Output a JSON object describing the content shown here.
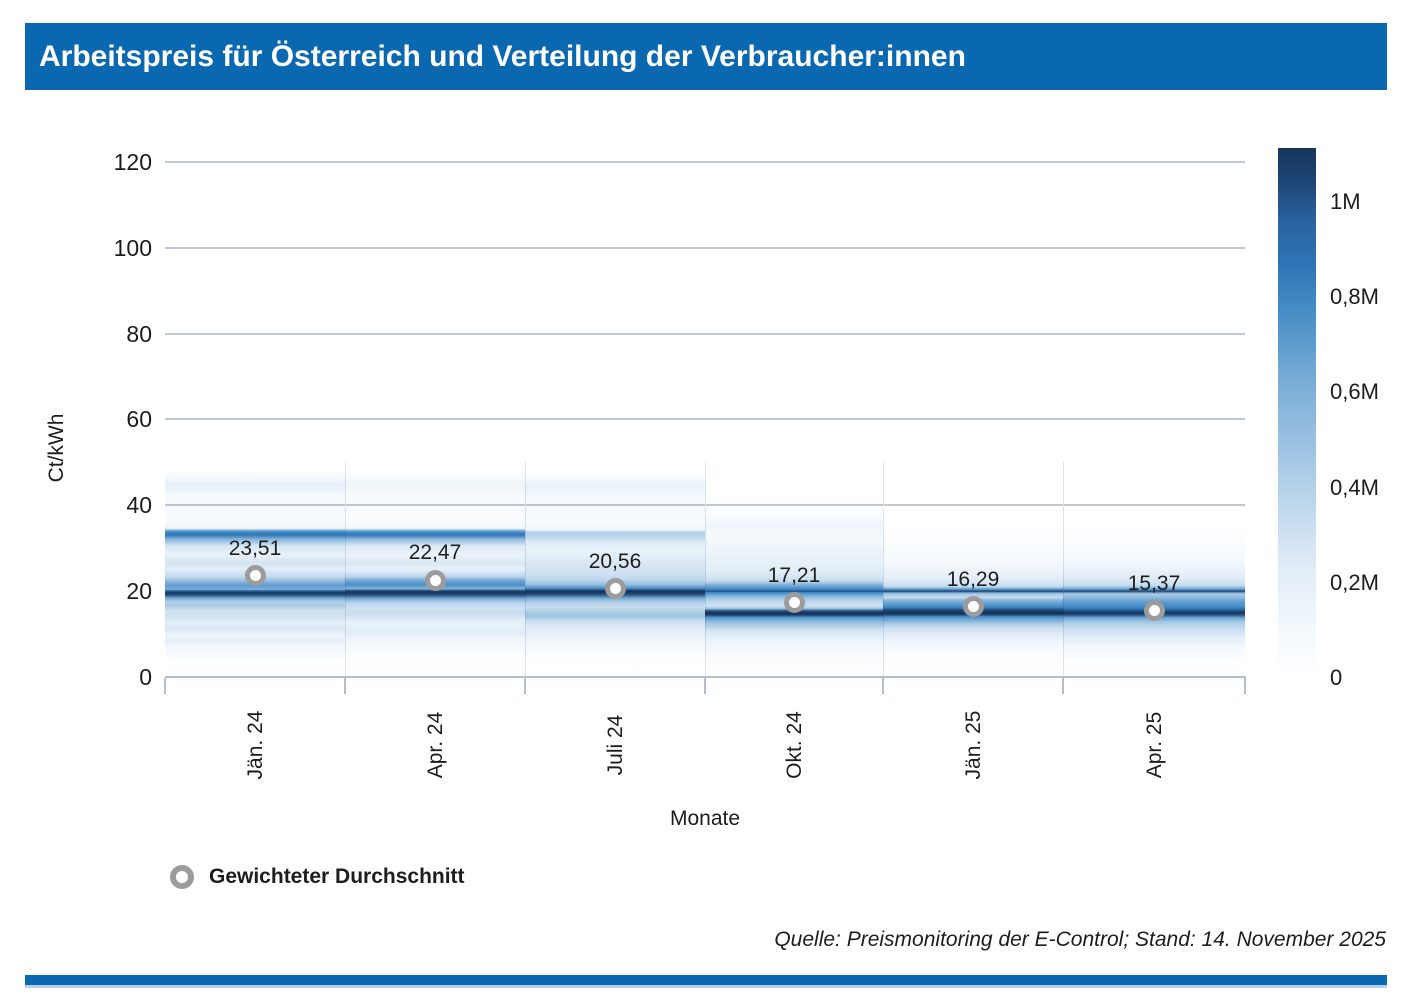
{
  "banner": {
    "title": "Arbeitspreis für Österreich und Verteilung der Verbraucher:innen"
  },
  "chart_data": {
    "type": "heatmap",
    "title": "Arbeitspreis für Österreich und Verteilung der Verbraucher:innen",
    "xlabel": "Monate",
    "ylabel": "Ct/kWh",
    "ylim": [
      0,
      120
    ],
    "yticks": [
      0,
      20,
      40,
      60,
      80,
      100,
      120
    ],
    "grid": true,
    "legend_position": "bottom-left",
    "categories": [
      "Jän. 24",
      "Apr. 24",
      "Juli 24",
      "Okt. 24",
      "Jän. 25",
      "Apr. 25"
    ],
    "series": [
      {
        "name": "Gewichteter Durchschnitt",
        "marker": "gray-ring-circle",
        "values": [
          23.51,
          22.47,
          20.56,
          17.21,
          16.29,
          15.37
        ],
        "labels": [
          "23,51",
          "22,47",
          "20,56",
          "17,21",
          "16,29",
          "15,37"
        ]
      }
    ],
    "colorbar": {
      "tick_labels": [
        "1M",
        "0,8M",
        "0,6M",
        "0,4M",
        "0,2M",
        "0"
      ],
      "orientation": "vertical",
      "gradient_stops": [
        [
          "0%",
          "#16355d"
        ],
        [
          "6%",
          "#1d4474"
        ],
        [
          "14%",
          "#2a63a0"
        ],
        [
          "22%",
          "#2e75b5"
        ],
        [
          "32%",
          "#4a90c7"
        ],
        [
          "44%",
          "#79add7"
        ],
        [
          "56%",
          "#9cc2e2"
        ],
        [
          "68%",
          "#c0d8ed"
        ],
        [
          "80%",
          "#e2edf7"
        ],
        [
          "90%",
          "#f2f8fc"
        ],
        [
          "100%",
          "#ffffff"
        ]
      ]
    },
    "density_columns": [
      {
        "month": "Jän. 24",
        "stops": [
          [
            48,
            "#ffffff"
          ],
          [
            46.3,
            "#f4f9fd"
          ],
          [
            45,
            "#e6eff8"
          ],
          [
            43.8,
            "#eaf2fa"
          ],
          [
            42,
            "#f6fafd"
          ],
          [
            36.5,
            "#f8fbfe"
          ],
          [
            34.6,
            "#edf4fa"
          ],
          [
            33.9,
            "#4a90c7"
          ],
          [
            33.1,
            "#2e75b5"
          ],
          [
            32,
            "#8ab7dc"
          ],
          [
            30.5,
            "#d6e5f3"
          ],
          [
            28.5,
            "#e9f2f9"
          ],
          [
            26.5,
            "#d4e4f2"
          ],
          [
            25,
            "#e2edf7"
          ],
          [
            23.3,
            "#c2d9ed"
          ],
          [
            22,
            "#82b1da"
          ],
          [
            21.2,
            "#5b9bd1"
          ],
          [
            20.4,
            "#7fb0d8"
          ],
          [
            19.9,
            "#2e75b5"
          ],
          [
            19.6,
            "#17365e"
          ],
          [
            19,
            "#2a5585"
          ],
          [
            18.4,
            "#6ea6d4"
          ],
          [
            17.5,
            "#b3d0e8"
          ],
          [
            16.5,
            "#a9cbe5"
          ],
          [
            15.4,
            "#d2e3f2"
          ],
          [
            14,
            "#cfe1f1"
          ],
          [
            12.8,
            "#e2edf7"
          ],
          [
            11,
            "#d9e8f4"
          ],
          [
            9.8,
            "#eef5fb"
          ],
          [
            8.2,
            "#e6f0f8"
          ],
          [
            6.8,
            "#f2f7fc"
          ],
          [
            4,
            "#fcfeff"
          ],
          [
            0,
            "#ffffff"
          ]
        ]
      },
      {
        "month": "Apr. 24",
        "stops": [
          [
            48,
            "#ffffff"
          ],
          [
            46.3,
            "#f8fbfe"
          ],
          [
            45,
            "#eef5fb"
          ],
          [
            43.8,
            "#f2f7fc"
          ],
          [
            42,
            "#f8fbfe"
          ],
          [
            36.5,
            "#fafcfe"
          ],
          [
            34.6,
            "#f0f6fb"
          ],
          [
            33.9,
            "#5597cd"
          ],
          [
            33.1,
            "#2e75b5"
          ],
          [
            32,
            "#93bcdf"
          ],
          [
            30.5,
            "#dce9f5"
          ],
          [
            28.5,
            "#ecf3fa"
          ],
          [
            26.5,
            "#d9e7f4"
          ],
          [
            25,
            "#e6f0f8"
          ],
          [
            23.4,
            "#bdd6ec"
          ],
          [
            22.3,
            "#6aa3d3"
          ],
          [
            21.4,
            "#4a90c7"
          ],
          [
            20.6,
            "#88b5dc"
          ],
          [
            19.9,
            "#1f4e79"
          ],
          [
            19.5,
            "#17365e"
          ],
          [
            18.9,
            "#35618f"
          ],
          [
            18.2,
            "#79add7"
          ],
          [
            17.2,
            "#bdd6ec"
          ],
          [
            16,
            "#cfe1f1"
          ],
          [
            14.7,
            "#c9ddee"
          ],
          [
            13.4,
            "#dfebf6"
          ],
          [
            12,
            "#e9f2f9"
          ],
          [
            10.4,
            "#dfebf6"
          ],
          [
            9,
            "#eef5fb"
          ],
          [
            7,
            "#f6fafd"
          ],
          [
            4,
            "#fcfeff"
          ],
          [
            0,
            "#ffffff"
          ]
        ]
      },
      {
        "month": "Juli 24",
        "stops": [
          [
            48,
            "#ffffff"
          ],
          [
            46,
            "#f6fafd"
          ],
          [
            44.6,
            "#e8f1f9"
          ],
          [
            43.4,
            "#eef5fb"
          ],
          [
            41.5,
            "#f6fafd"
          ],
          [
            36,
            "#f8fbfe"
          ],
          [
            34.3,
            "#f0f6fb"
          ],
          [
            33.6,
            "#aecde6"
          ],
          [
            32.6,
            "#bdd6ec"
          ],
          [
            31.2,
            "#e0ecf7"
          ],
          [
            29.5,
            "#e9f2f9"
          ],
          [
            27.5,
            "#dfebf6"
          ],
          [
            25.8,
            "#d6e5f3"
          ],
          [
            24.2,
            "#cfe1f1"
          ],
          [
            22.8,
            "#c2d9ed"
          ],
          [
            21.6,
            "#9cc2e2"
          ],
          [
            20.8,
            "#5b9bd1"
          ],
          [
            20.1,
            "#1f4e79"
          ],
          [
            19.6,
            "#17365e"
          ],
          [
            19,
            "#35618f"
          ],
          [
            18.3,
            "#79add7"
          ],
          [
            17.3,
            "#b3d0e8"
          ],
          [
            16.2,
            "#c9ddee"
          ],
          [
            15,
            "#aecde6"
          ],
          [
            14.1,
            "#9cc6e2"
          ],
          [
            13.2,
            "#c2d9ed"
          ],
          [
            12,
            "#d9e8f4"
          ],
          [
            10.8,
            "#e4eef8"
          ],
          [
            9.3,
            "#e9f2f9"
          ],
          [
            7.8,
            "#f2f7fc"
          ],
          [
            4.5,
            "#fcfeff"
          ],
          [
            0,
            "#ffffff"
          ]
        ]
      },
      {
        "month": "Okt. 24",
        "stops": [
          [
            40,
            "#ffffff"
          ],
          [
            37,
            "#f8fbfe"
          ],
          [
            35.3,
            "#eef5fb"
          ],
          [
            33.5,
            "#f4f9fd"
          ],
          [
            30.5,
            "#f0f6fb"
          ],
          [
            28.5,
            "#eaf2fa"
          ],
          [
            26.5,
            "#e6f0f8"
          ],
          [
            25,
            "#e2edf7"
          ],
          [
            23.6,
            "#d9e7f4"
          ],
          [
            22.4,
            "#c6dcef"
          ],
          [
            21.4,
            "#82b1da"
          ],
          [
            20.6,
            "#4a90c7"
          ],
          [
            19.9,
            "#2e75b5"
          ],
          [
            19.3,
            "#5b9bd1"
          ],
          [
            18.4,
            "#9cc6e2"
          ],
          [
            17.4,
            "#c2d9ed"
          ],
          [
            16.5,
            "#cfe1f1"
          ],
          [
            15.9,
            "#9cc2e2"
          ],
          [
            15.4,
            "#2a5585"
          ],
          [
            15,
            "#17365e"
          ],
          [
            14.5,
            "#17365e"
          ],
          [
            13.9,
            "#4a90c7"
          ],
          [
            13,
            "#8ab7dc"
          ],
          [
            12,
            "#aecde6"
          ],
          [
            10.8,
            "#d2e3f2"
          ],
          [
            9.5,
            "#e4eef8"
          ],
          [
            8,
            "#eef5fb"
          ],
          [
            5.5,
            "#f8fbfe"
          ],
          [
            0,
            "#ffffff"
          ]
        ]
      },
      {
        "month": "Jän. 25",
        "stops": [
          [
            35,
            "#ffffff"
          ],
          [
            31,
            "#fafcfe"
          ],
          [
            27,
            "#f4f9fd"
          ],
          [
            24.5,
            "#ecf3fa"
          ],
          [
            23,
            "#e4eef8"
          ],
          [
            21.8,
            "#d6e5f3"
          ],
          [
            21,
            "#c2d9ed"
          ],
          [
            20.3,
            "#4a90c7"
          ],
          [
            19.9,
            "#35618f"
          ],
          [
            19.4,
            "#9cc2e2"
          ],
          [
            18.6,
            "#c6dcef"
          ],
          [
            17.7,
            "#82b1da"
          ],
          [
            16.9,
            "#5b9bd1"
          ],
          [
            16.2,
            "#3f85c0"
          ],
          [
            15.6,
            "#1f4e79"
          ],
          [
            15.1,
            "#17365e"
          ],
          [
            14.6,
            "#17365e"
          ],
          [
            14,
            "#4a90c7"
          ],
          [
            13.2,
            "#79add7"
          ],
          [
            12.3,
            "#aecde6"
          ],
          [
            11.2,
            "#cfe1f1"
          ],
          [
            10,
            "#dfebf6"
          ],
          [
            8.8,
            "#eaf2fa"
          ],
          [
            7.2,
            "#f4f9fd"
          ],
          [
            4,
            "#fcfeff"
          ],
          [
            0,
            "#ffffff"
          ]
        ]
      },
      {
        "month": "Apr. 25",
        "stops": [
          [
            35,
            "#ffffff"
          ],
          [
            31.5,
            "#fafcfe"
          ],
          [
            27.5,
            "#f4f9fd"
          ],
          [
            24.8,
            "#eaf2fa"
          ],
          [
            23.4,
            "#e2edf7"
          ],
          [
            22.2,
            "#d6e5f3"
          ],
          [
            21.2,
            "#c2d9ed"
          ],
          [
            20.4,
            "#5b9bd1"
          ],
          [
            19.9,
            "#35618f"
          ],
          [
            19.3,
            "#aecde6"
          ],
          [
            18.4,
            "#8ab7dc"
          ],
          [
            17.4,
            "#5b9bd1"
          ],
          [
            16.5,
            "#4a90c7"
          ],
          [
            15.8,
            "#2e75b5"
          ],
          [
            15.3,
            "#1f4e79"
          ],
          [
            14.9,
            "#17365e"
          ],
          [
            14.4,
            "#2a5585"
          ],
          [
            13.8,
            "#6aa3d3"
          ],
          [
            12.9,
            "#9cc6e2"
          ],
          [
            11.9,
            "#bdd6ec"
          ],
          [
            10.7,
            "#cfe1f1"
          ],
          [
            9.5,
            "#dfebf6"
          ],
          [
            8.3,
            "#eaf2fa"
          ],
          [
            6.6,
            "#f4f9fd"
          ],
          [
            3.5,
            "#fcfeff"
          ],
          [
            0,
            "#ffffff"
          ]
        ]
      }
    ]
  },
  "legend": {
    "label": "Gewichteter Durchschnitt"
  },
  "source_note": "Quelle: Preismonitoring der E-Control; Stand: 14. November 2025",
  "colors": {
    "accent_blue": "#0a68b1",
    "gridline": "#c0c9da",
    "axis_line": "#b3becf",
    "column_separator": "#dde4ee",
    "darkest_band": "#17365e",
    "strong_band": "#2e75b5",
    "marker_ring": "#9c9c9c",
    "text": "#1d1d1d",
    "footer_shadow": "#b9cfe6"
  }
}
